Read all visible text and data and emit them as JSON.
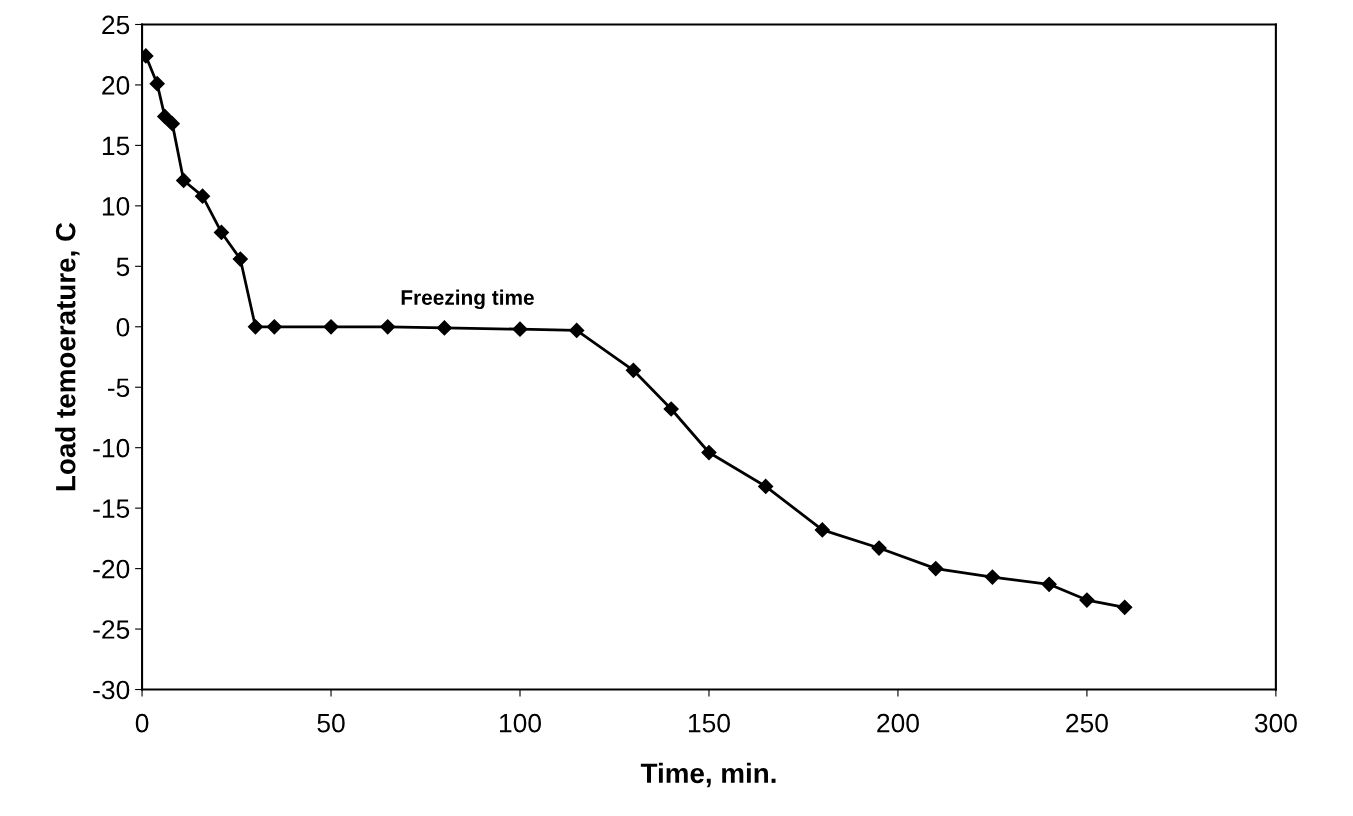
{
  "chart_data": {
    "type": "line",
    "xlabel": "Time, min.",
    "ylabel": "Load temoerature, C",
    "x": [
      1,
      4,
      6,
      8,
      11,
      16,
      21,
      26,
      30,
      35,
      50,
      65,
      80,
      100,
      115,
      130,
      140,
      150,
      165,
      180,
      195,
      210,
      225,
      240,
      250,
      260
    ],
    "series": [
      {
        "color": "#000000",
        "values": [
          22.4,
          20.1,
          17.4,
          16.8,
          12.1,
          10.8,
          7.8,
          5.6,
          0,
          0,
          0,
          0,
          -0.1,
          -0.2,
          -0.3,
          -3.6,
          -6.8,
          -10.4,
          -13.2,
          -16.8,
          -18.3,
          -20.0,
          -20.7,
          -21.3,
          -22.6,
          -23.2
        ]
      }
    ],
    "annotations": [
      "Freezing time"
    ],
    "xlim": [
      0,
      300
    ],
    "xticks": [
      0,
      50,
      100,
      150,
      200,
      250,
      300
    ],
    "ylim": [
      -30,
      25
    ],
    "yticks": [
      -30,
      -25,
      -20,
      -15,
      -10,
      -5,
      0,
      5,
      10,
      15,
      20,
      25
    ],
    "grid": false,
    "legend": false,
    "marker": "diamond",
    "line_style": "solid"
  }
}
